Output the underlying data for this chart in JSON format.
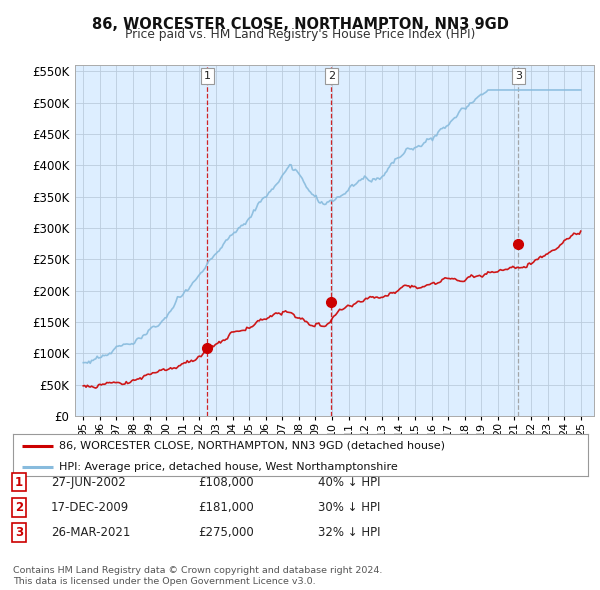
{
  "title": "86, WORCESTER CLOSE, NORTHAMPTON, NN3 9GD",
  "subtitle": "Price paid vs. HM Land Registry's House Price Index (HPI)",
  "legend_line1": "86, WORCESTER CLOSE, NORTHAMPTON, NN3 9GD (detached house)",
  "legend_line2": "HPI: Average price, detached house, West Northamptonshire",
  "footer_line1": "Contains HM Land Registry data © Crown copyright and database right 2024.",
  "footer_line2": "This data is licensed under the Open Government Licence v3.0.",
  "sale_color": "#cc0000",
  "hpi_color": "#88bbdd",
  "vline_color_red": "#cc0000",
  "vline_color_gray": "#999999",
  "fig_bg": "#ffffff",
  "plot_bg": "#ddeeff",
  "ylim": [
    0,
    560000
  ],
  "yticks": [
    0,
    50000,
    100000,
    150000,
    200000,
    250000,
    300000,
    350000,
    400000,
    450000,
    500000,
    550000
  ],
  "sales": [
    {
      "date": 2002.49,
      "price": 108000,
      "label": "1",
      "vline_style": "red"
    },
    {
      "date": 2009.96,
      "price": 181000,
      "label": "2",
      "vline_style": "red"
    },
    {
      "date": 2021.23,
      "price": 275000,
      "label": "3",
      "vline_style": "gray"
    }
  ],
  "table_rows": [
    {
      "num": "1",
      "date": "27-JUN-2002",
      "price": "£108,000",
      "change": "40% ↓ HPI"
    },
    {
      "num": "2",
      "date": "17-DEC-2009",
      "price": "£181,000",
      "change": "30% ↓ HPI"
    },
    {
      "num": "3",
      "date": "26-MAR-2021",
      "price": "£275,000",
      "change": "32% ↓ HPI"
    }
  ],
  "xticklabels": [
    "95",
    "96",
    "97",
    "98",
    "99",
    "00",
    "01",
    "02",
    "03",
    "04",
    "05",
    "06",
    "07",
    "08",
    "09",
    "10",
    "11",
    "12",
    "13",
    "14",
    "15",
    "16",
    "17",
    "18",
    "19",
    "20",
    "21",
    "22",
    "23",
    "24",
    "25"
  ],
  "xtick_years": [
    1995,
    1996,
    1997,
    1998,
    1999,
    2000,
    2001,
    2002,
    2003,
    2004,
    2005,
    2006,
    2007,
    2008,
    2009,
    2010,
    2011,
    2012,
    2013,
    2014,
    2015,
    2016,
    2017,
    2018,
    2019,
    2020,
    2021,
    2022,
    2023,
    2024,
    2025
  ]
}
